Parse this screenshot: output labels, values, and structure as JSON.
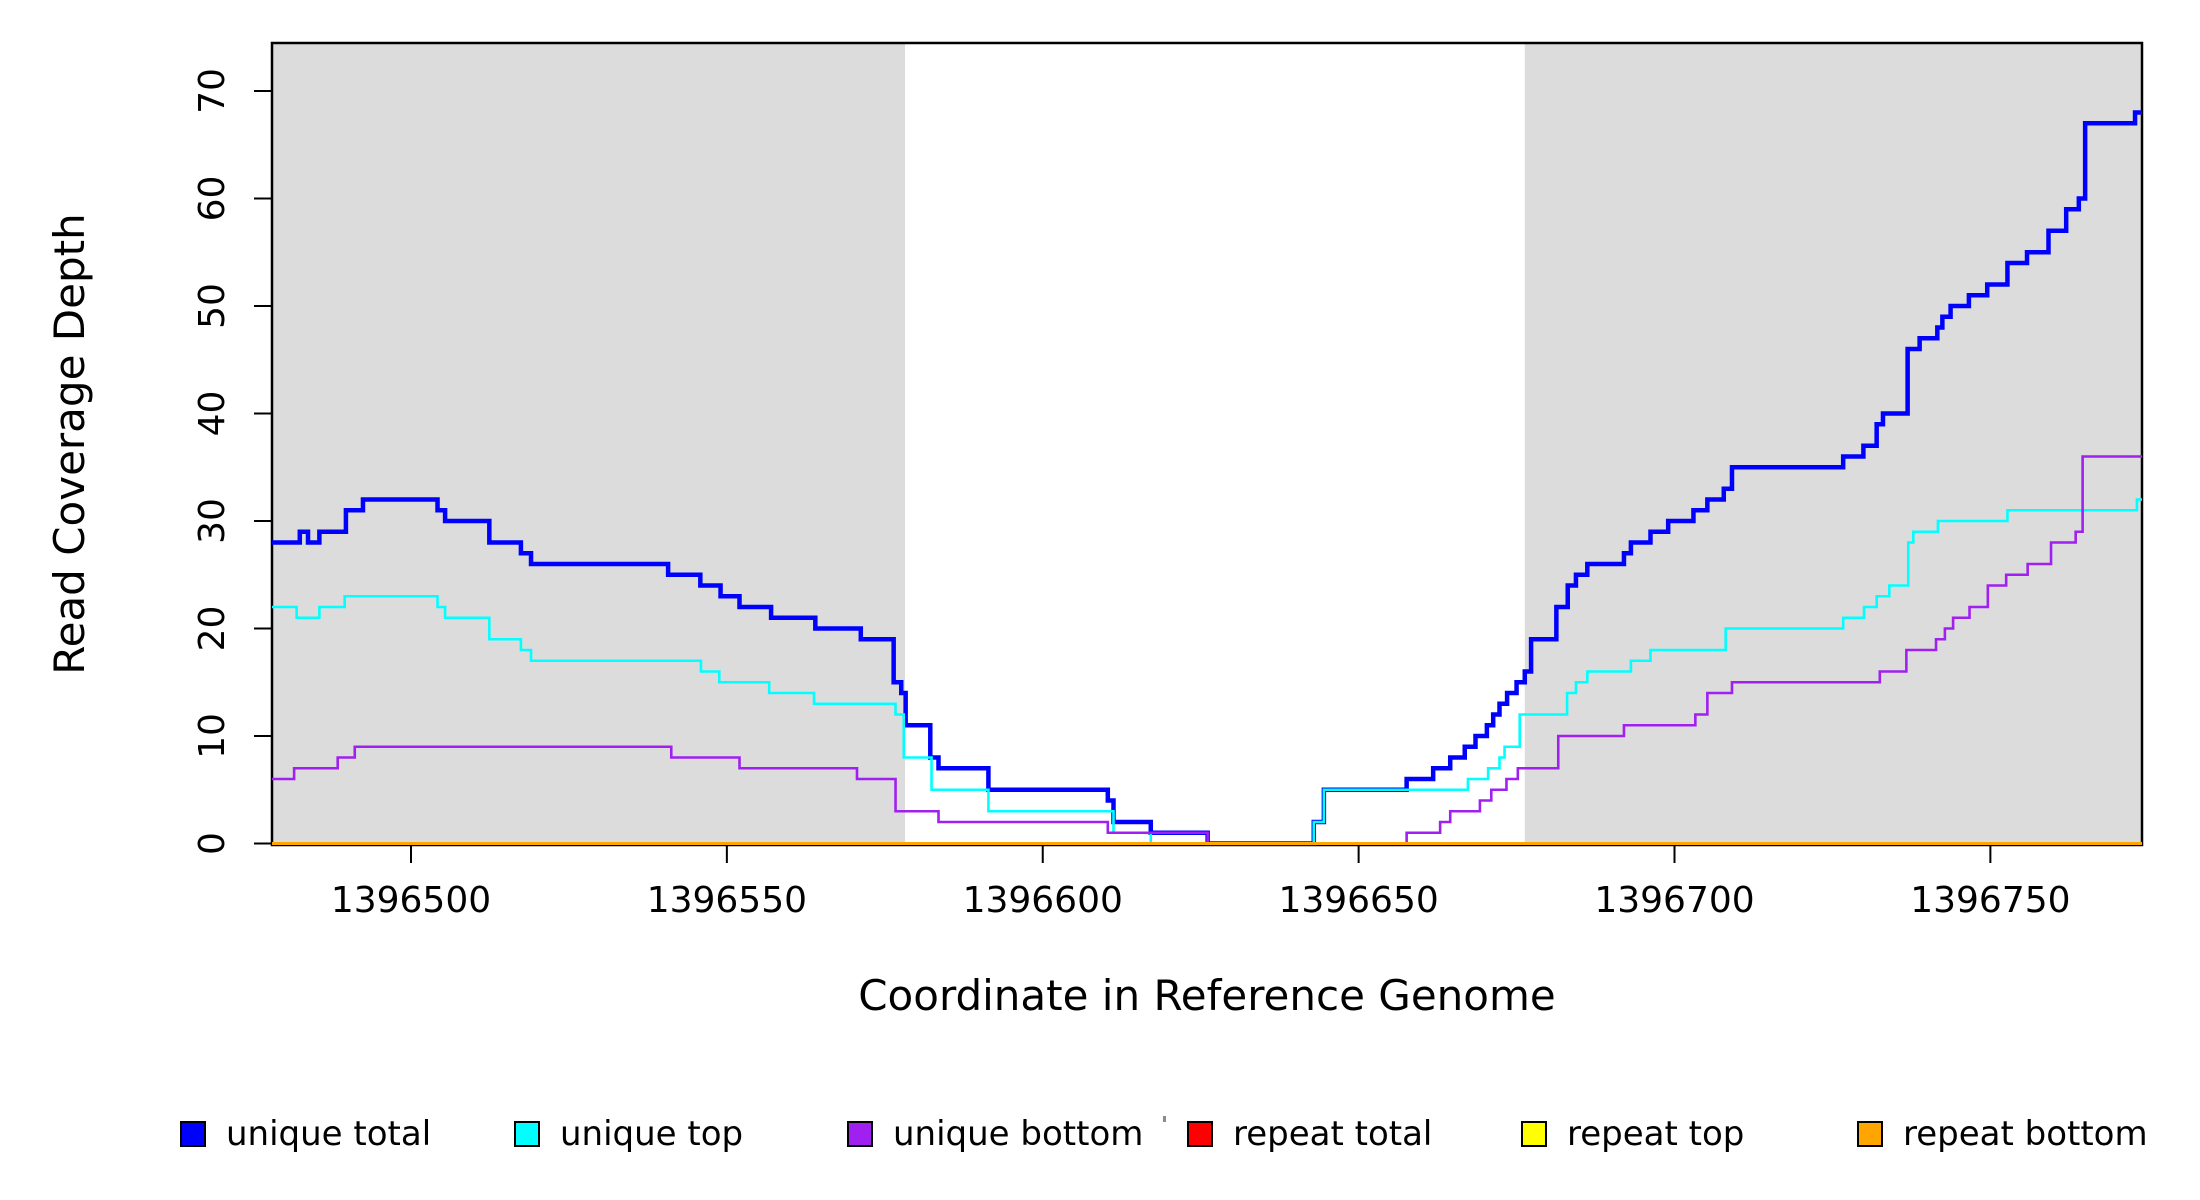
{
  "chart_data": {
    "type": "line",
    "subtype": "step-coverage-plot",
    "title": "",
    "xlabel": "Coordinate in Reference Genome",
    "ylabel": "Read Coverage Depth",
    "xlim": [
      1396478,
      1396774
    ],
    "ylim": [
      0,
      74.5
    ],
    "x_ticks": [
      1396500,
      1396550,
      1396600,
      1396650,
      1396700,
      1396750
    ],
    "y_ticks": [
      0,
      10,
      20,
      30,
      40,
      50,
      60,
      70
    ],
    "grid": false,
    "background_color": "#ffffff",
    "axis_color": "#000000",
    "shaded_regions": [
      {
        "name": "left-gray-band",
        "x0": 1396478,
        "x1": 1396578.2,
        "color": "#DCDCDC"
      },
      {
        "name": "right-gray-band",
        "x0": 1396676.3,
        "x1": 1396774,
        "color": "#DCDCDC"
      }
    ],
    "series": [
      {
        "name": "unique total",
        "color": "#0000FF",
        "stroke_width": 4.5,
        "points": [
          [
            1396478,
            28
          ],
          [
            1396482.4,
            29
          ],
          [
            1396483.7,
            28
          ],
          [
            1396485.5,
            29
          ],
          [
            1396489.7,
            31
          ],
          [
            1396492.4,
            32
          ],
          [
            1396504.2,
            31
          ],
          [
            1396505.4,
            30
          ],
          [
            1396512.4,
            28
          ],
          [
            1396517.4,
            27
          ],
          [
            1396519,
            26
          ],
          [
            1396540.7,
            25
          ],
          [
            1396545.8,
            24
          ],
          [
            1396549,
            23
          ],
          [
            1396552,
            22
          ],
          [
            1396557,
            21
          ],
          [
            1396564,
            20
          ],
          [
            1396571.2,
            19
          ],
          [
            1396576.4,
            15
          ],
          [
            1396577.6,
            14
          ],
          [
            1396578.3,
            11
          ],
          [
            1396582.2,
            8
          ],
          [
            1396583.5,
            7
          ],
          [
            1396591.4,
            5
          ],
          [
            1396610.3,
            4
          ],
          [
            1396611.2,
            2
          ],
          [
            1396617.1,
            1
          ],
          [
            1396626.1,
            0
          ],
          [
            1396642.9,
            2
          ],
          [
            1396644.5,
            5
          ],
          [
            1396657.6,
            6
          ],
          [
            1396661.8,
            7
          ],
          [
            1396664.5,
            8
          ],
          [
            1396666.8,
            9
          ],
          [
            1396668.5,
            10
          ],
          [
            1396670.3,
            11
          ],
          [
            1396671.3,
            12
          ],
          [
            1396672.3,
            13
          ],
          [
            1396673.5,
            14
          ],
          [
            1396675,
            15
          ],
          [
            1396676.3,
            16
          ],
          [
            1396677.3,
            19
          ],
          [
            1396681.3,
            22
          ],
          [
            1396683.1,
            24
          ],
          [
            1396684.4,
            25
          ],
          [
            1396686.2,
            26
          ],
          [
            1396692,
            27
          ],
          [
            1396693.1,
            28
          ],
          [
            1396696.2,
            29
          ],
          [
            1396699,
            30
          ],
          [
            1396703,
            31
          ],
          [
            1396705.2,
            32
          ],
          [
            1396707.8,
            33
          ],
          [
            1396709.1,
            35
          ],
          [
            1396726.7,
            36
          ],
          [
            1396729.9,
            37
          ],
          [
            1396732,
            39
          ],
          [
            1396733,
            40
          ],
          [
            1396736.9,
            46
          ],
          [
            1396738.8,
            47
          ],
          [
            1396741.6,
            48
          ],
          [
            1396742.4,
            49
          ],
          [
            1396743.7,
            50
          ],
          [
            1396746.6,
            51
          ],
          [
            1396749.5,
            52
          ],
          [
            1396752.7,
            54
          ],
          [
            1396755.8,
            55
          ],
          [
            1396759.2,
            57
          ],
          [
            1396762,
            59
          ],
          [
            1396764,
            60
          ],
          [
            1396765,
            67
          ],
          [
            1396772.9,
            68
          ]
        ]
      },
      {
        "name": "unique top",
        "color": "#00FFFF",
        "stroke_width": 2.6,
        "points": [
          [
            1396478,
            22
          ],
          [
            1396481.9,
            21
          ],
          [
            1396485.5,
            22
          ],
          [
            1396489.5,
            23
          ],
          [
            1396504.2,
            22
          ],
          [
            1396505.4,
            21
          ],
          [
            1396512.4,
            19
          ],
          [
            1396517.4,
            18
          ],
          [
            1396519,
            17
          ],
          [
            1396545.9,
            16
          ],
          [
            1396548.8,
            15
          ],
          [
            1396556.7,
            14
          ],
          [
            1396563.8,
            13
          ],
          [
            1396576.7,
            12
          ],
          [
            1396578,
            8
          ],
          [
            1396582.4,
            5
          ],
          [
            1396591.4,
            3
          ],
          [
            1396611.2,
            1
          ],
          [
            1396617.1,
            0
          ],
          [
            1396642.9,
            2
          ],
          [
            1396644.5,
            5
          ],
          [
            1396667.3,
            6
          ],
          [
            1396670.5,
            7
          ],
          [
            1396672.3,
            8
          ],
          [
            1396673.1,
            9
          ],
          [
            1396675.5,
            12
          ],
          [
            1396683,
            14
          ],
          [
            1396684.4,
            15
          ],
          [
            1396686.2,
            16
          ],
          [
            1396693.1,
            17
          ],
          [
            1396696.2,
            18
          ],
          [
            1396708.1,
            20
          ],
          [
            1396726.7,
            21
          ],
          [
            1396730,
            22
          ],
          [
            1396732,
            23
          ],
          [
            1396734,
            24
          ],
          [
            1396737,
            28
          ],
          [
            1396737.8,
            29
          ],
          [
            1396741.7,
            30
          ],
          [
            1396752.7,
            31
          ],
          [
            1396773.2,
            32
          ]
        ]
      },
      {
        "name": "unique bottom",
        "color": "#A020F0",
        "stroke_width": 2.6,
        "points": [
          [
            1396478,
            6
          ],
          [
            1396481.5,
            7
          ],
          [
            1396488.4,
            8
          ],
          [
            1396491.1,
            9
          ],
          [
            1396541.2,
            8
          ],
          [
            1396552,
            7
          ],
          [
            1396570.6,
            6
          ],
          [
            1396576.7,
            3
          ],
          [
            1396583.5,
            2
          ],
          [
            1396610.3,
            1
          ],
          [
            1396626.1,
            0
          ],
          [
            1396657.6,
            1
          ],
          [
            1396662.9,
            2
          ],
          [
            1396664.5,
            3
          ],
          [
            1396669.2,
            4
          ],
          [
            1396671,
            5
          ],
          [
            1396673.4,
            6
          ],
          [
            1396675.2,
            7
          ],
          [
            1396681.6,
            10
          ],
          [
            1396692,
            11
          ],
          [
            1396703.3,
            12
          ],
          [
            1396705.2,
            14
          ],
          [
            1396709.1,
            15
          ],
          [
            1396732.5,
            16
          ],
          [
            1396736.7,
            18
          ],
          [
            1396741.4,
            19
          ],
          [
            1396742.8,
            20
          ],
          [
            1396744.1,
            21
          ],
          [
            1396746.7,
            22
          ],
          [
            1396749.6,
            24
          ],
          [
            1396752.5,
            25
          ],
          [
            1396755.9,
            26
          ],
          [
            1396759.6,
            28
          ],
          [
            1396763.5,
            29
          ],
          [
            1396764.6,
            36
          ]
        ]
      },
      {
        "name": "repeat total",
        "color": "#FF0000",
        "stroke_width": 2.6,
        "points": [
          [
            1396478,
            0
          ]
        ]
      },
      {
        "name": "repeat top",
        "color": "#FFFF00",
        "stroke_width": 2.6,
        "points": [
          [
            1396478,
            0
          ]
        ]
      },
      {
        "name": "repeat bottom",
        "color": "#FFA500",
        "stroke_width": 3,
        "points": [
          [
            1396478,
            0
          ]
        ]
      }
    ]
  },
  "legend": {
    "items": [
      {
        "label": "unique total",
        "color": "#0000FF"
      },
      {
        "label": "unique top",
        "color": "#00FFFF"
      },
      {
        "label": "unique bottom",
        "color": "#A020F0"
      },
      {
        "label": "repeat total",
        "color": "#FF0000"
      },
      {
        "label": "repeat top",
        "color": "#FFFF00"
      },
      {
        "label": "repeat bottom",
        "color": "#FFA500"
      }
    ]
  }
}
